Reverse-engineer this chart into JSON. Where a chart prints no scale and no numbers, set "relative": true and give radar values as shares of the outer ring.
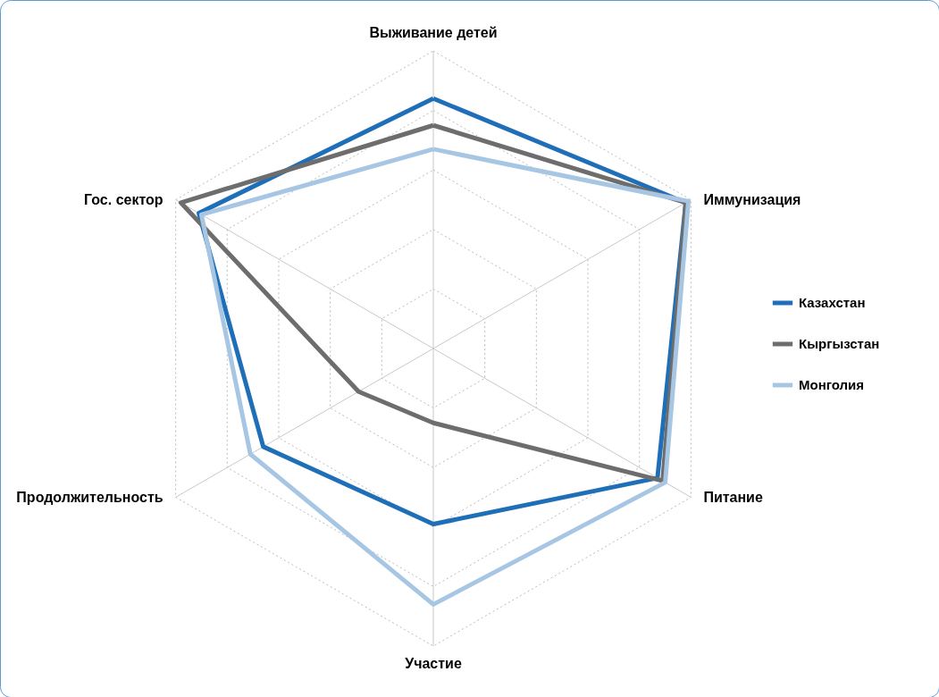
{
  "chart_data": {
    "type": "radar",
    "relative": true,
    "grid": true,
    "legend": "right",
    "line_style": "solid",
    "marker": "none",
    "categories": [
      "Выживание детей",
      "Иммунизация",
      "Питание",
      "Участие",
      "Продолжительность",
      "Гос. сектор"
    ],
    "series": [
      {
        "name": "Казахстан",
        "color": "#1f6fb8",
        "values": [
          0.84,
          0.98,
          0.87,
          0.59,
          0.66,
          0.91
        ]
      },
      {
        "name": "Кыргызстан",
        "color": "#6d6d6d",
        "values": [
          0.75,
          0.98,
          0.89,
          0.25,
          0.29,
          0.98
        ]
      },
      {
        "name": "Монголия",
        "color": "#a7c6e3",
        "values": [
          0.67,
          0.99,
          0.9,
          0.86,
          0.71,
          0.9
        ]
      }
    ]
  }
}
